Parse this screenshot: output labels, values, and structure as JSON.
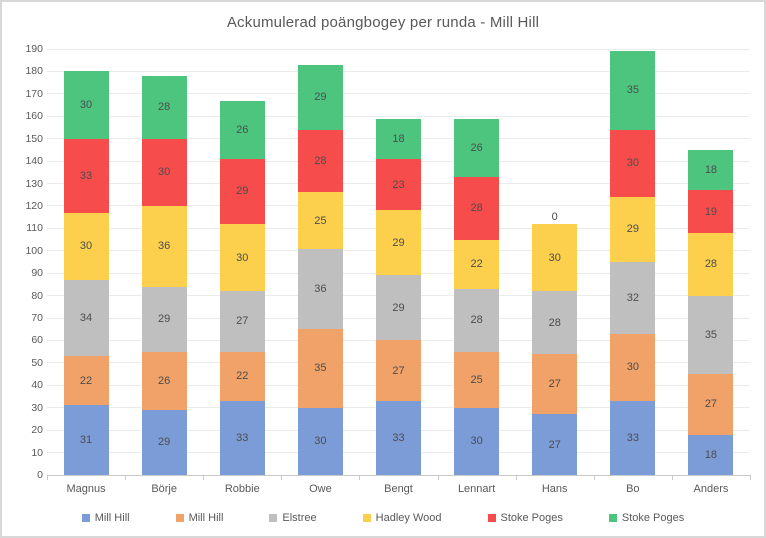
{
  "chart_data": {
    "type": "bar",
    "stacked": true,
    "title": "Ackumulerad poängbogey per runda - Mill Hill",
    "categories": [
      "Magnus",
      "Börje",
      "Robbie",
      "Owe",
      "Bengt",
      "Lennart",
      "Hans",
      "Bo",
      "Anders"
    ],
    "series": [
      {
        "name": "Mill Hill",
        "color": "#7c9cd8",
        "values": [
          31,
          29,
          33,
          30,
          33,
          30,
          27,
          33,
          18
        ]
      },
      {
        "name": "Mill Hill",
        "color": "#f0a269",
        "values": [
          22,
          26,
          22,
          35,
          27,
          25,
          27,
          30,
          27
        ]
      },
      {
        "name": "Elstree",
        "color": "#bfbfbf",
        "values": [
          34,
          29,
          27,
          36,
          29,
          28,
          28,
          32,
          35
        ]
      },
      {
        "name": "Hadley Wood",
        "color": "#fccf4d",
        "values": [
          30,
          36,
          30,
          25,
          29,
          22,
          30,
          29,
          28
        ]
      },
      {
        "name": "Stoke Poges",
        "color": "#f74c4c",
        "values": [
          33,
          30,
          29,
          28,
          23,
          28,
          0,
          30,
          19
        ]
      },
      {
        "name": "Stoke Poges",
        "color": "#4dc57e",
        "values": [
          30,
          28,
          26,
          29,
          18,
          26,
          null,
          35,
          18
        ]
      }
    ],
    "totals": [
      180,
      178,
      167,
      183,
      159,
      159,
      112,
      189,
      145
    ],
    "y_axis": {
      "min": 0,
      "max": 190,
      "step": 10
    },
    "grid": true,
    "legend_position": "bottom",
    "data_labels": true
  }
}
